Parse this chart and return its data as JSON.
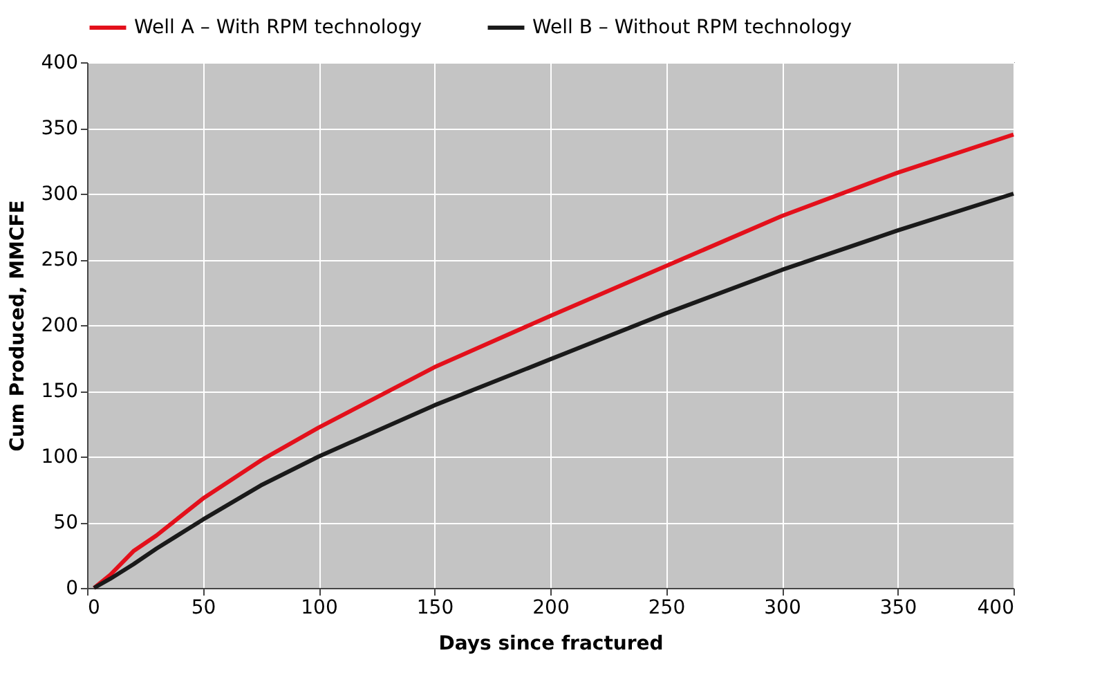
{
  "chart_data": {
    "type": "line",
    "xlabel": "Days since fractured",
    "ylabel": "Cum Produced, MMCFE",
    "xlim": [
      0,
      400
    ],
    "xticks": [
      0,
      50,
      100,
      150,
      200,
      250,
      300,
      350,
      400
    ],
    "ylim": [
      0,
      400
    ],
    "yticks": [
      0,
      50,
      100,
      150,
      200,
      250,
      300,
      350,
      400
    ],
    "grid": true,
    "legend": "top",
    "line_style": "solid",
    "marker": "none",
    "series": [
      {
        "name": "Well A – With RPM technology",
        "color": "#e3101b",
        "x": [
          3,
          10,
          20,
          30,
          50,
          75,
          100,
          150,
          200,
          250,
          300,
          350,
          400
        ],
        "values": [
          0,
          10,
          28,
          40,
          68,
          97,
          122,
          168,
          207,
          245,
          283,
          316,
          345
        ]
      },
      {
        "name": "Well B – Without RPM technology",
        "color": "#1a1a1a",
        "x": [
          3,
          10,
          20,
          30,
          50,
          75,
          100,
          150,
          200,
          250,
          300,
          350,
          400
        ],
        "values": [
          0,
          7,
          18,
          30,
          52,
          78,
          100,
          139,
          174,
          209,
          242,
          272,
          300
        ]
      }
    ]
  }
}
